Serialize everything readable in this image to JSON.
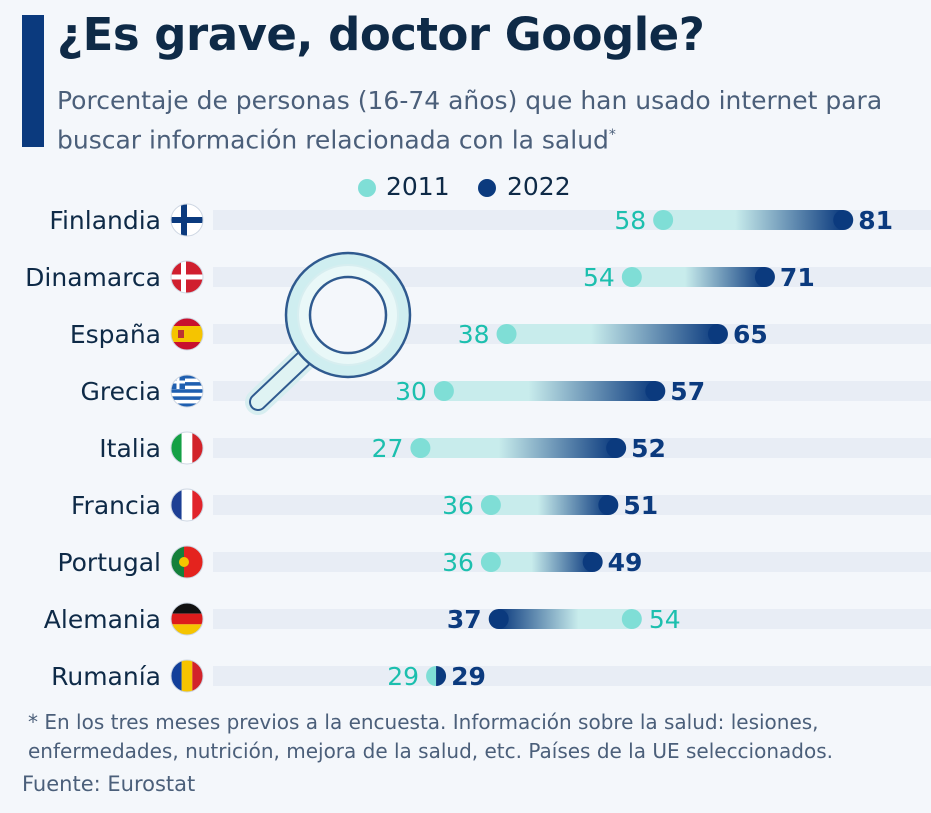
{
  "header": {
    "title": "¿Es grave, doctor Google?",
    "subtitle": "Porcentaje de personas (16-74 años) que han usado internet para buscar información relacionada con la salud",
    "subtitle_mark": "*"
  },
  "footer": {
    "note": "* En los tres meses previos a la encuesta. Información sobre la salud: lesiones, enfermedades, nutrición, mejora de la salud, etc. Países de la UE seleccionados.",
    "source": "Fuente: Eurostat"
  },
  "chart_data": {
    "type": "dumbbell",
    "title": "¿Es grave, doctor Google?",
    "legend": [
      {
        "name": "2011",
        "color": "#7fded6"
      },
      {
        "name": "2022",
        "color": "#0b3a7e"
      }
    ],
    "legend_placement": "top",
    "xlim": [
      0,
      100
    ],
    "grid": false,
    "categories": [
      "Finlandia",
      "Dinamarca",
      "España",
      "Grecia",
      "Italia",
      "Francia",
      "Portugal",
      "Alemania",
      "Rumanía"
    ],
    "flags": [
      "finland-flag",
      "denmark-flag",
      "spain-flag",
      "greece-flag",
      "italy-flag",
      "france-flag",
      "portugal-flag",
      "germany-flag",
      "romania-flag"
    ],
    "series": [
      {
        "name": "2011",
        "values": [
          58,
          54,
          38,
          30,
          27,
          36,
          36,
          54,
          29
        ]
      },
      {
        "name": "2022",
        "values": [
          81,
          71,
          65,
          57,
          52,
          51,
          49,
          37,
          29
        ]
      }
    ],
    "colors": {
      "light": "#7fded6",
      "light_text": "#1cbfae",
      "dark": "#0b3a7e",
      "track": "#e8edf5",
      "label": "#0e2a47"
    }
  }
}
